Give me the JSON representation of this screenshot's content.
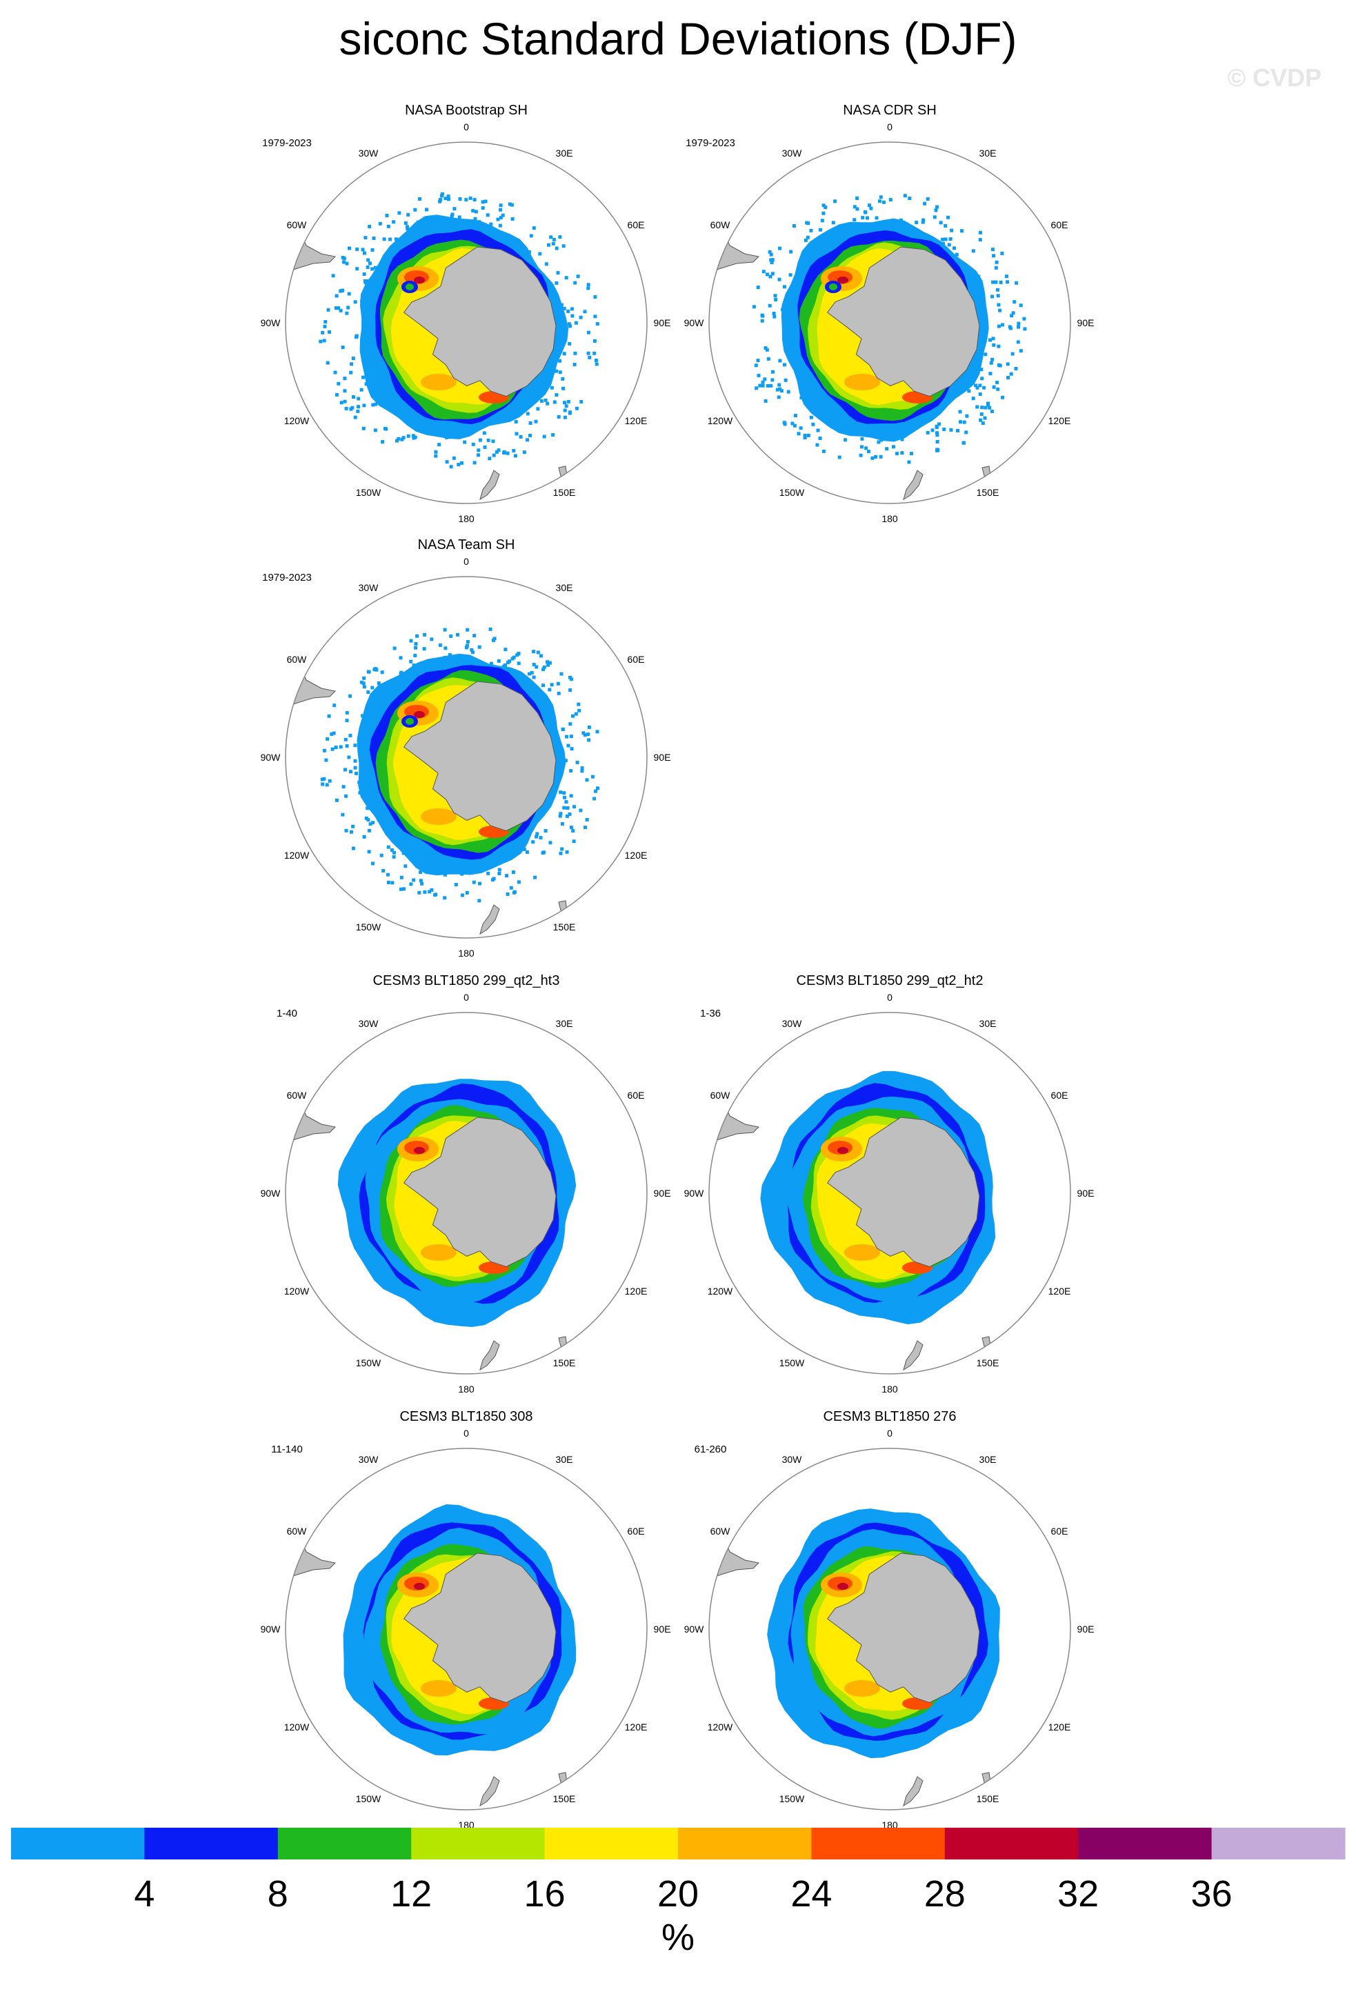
{
  "title": "siconc Standard Deviations (DJF)",
  "watermark": "© CVDP",
  "longitude_labels": [
    "0",
    "30E",
    "60E",
    "90E",
    "120E",
    "150E",
    "180",
    "150W",
    "120W",
    "90W",
    "60W",
    "30W"
  ],
  "panels": [
    {
      "title": "NASA Bootstrap SH",
      "period": "1979-2023",
      "kind": "obs"
    },
    {
      "title": "NASA CDR SH",
      "period": "1979-2023",
      "kind": "obs"
    },
    {
      "title": "NASA Team SH",
      "period": "1979-2023",
      "kind": "obs"
    },
    {
      "title": "CESM3 BLT1850 299_qt2_ht3",
      "period": "1-40",
      "kind": "model"
    },
    {
      "title": "CESM3 BLT1850 299_qt2_ht2",
      "period": "1-36",
      "kind": "model"
    },
    {
      "title": "CESM3 BLT1850 308",
      "period": "11-140",
      "kind": "model"
    },
    {
      "title": "CESM3 BLT1850 276",
      "period": "61-260",
      "kind": "model"
    }
  ],
  "colorbar": {
    "labels": [
      "4",
      "8",
      "12",
      "16",
      "20",
      "24",
      "28",
      "32",
      "36"
    ],
    "colors": [
      "#0d9df5",
      "#0a1cf5",
      "#1fb81f",
      "#b4e600",
      "#ffea00",
      "#ffb300",
      "#ff4d00",
      "#c0002a",
      "#870063",
      "#c3aad8"
    ],
    "unit": "%"
  },
  "colors": {
    "land": "#bfbfbf",
    "coast": "#555555",
    "ring": "#888888"
  }
}
